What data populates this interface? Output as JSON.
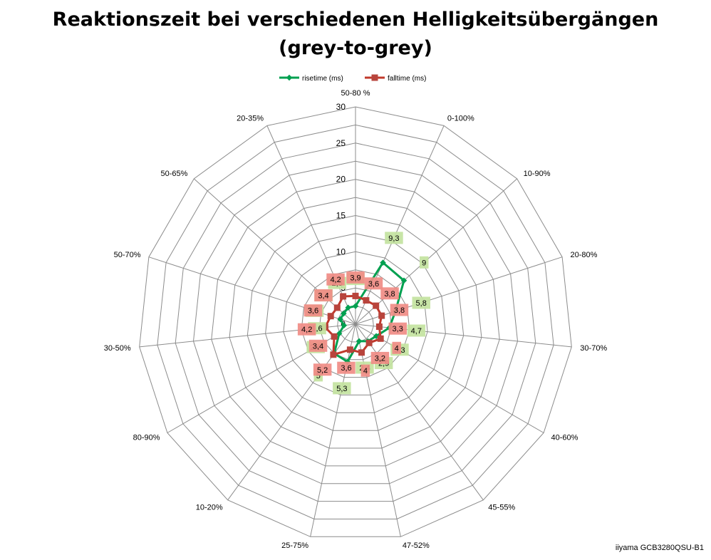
{
  "footer": {
    "credit": "iiyama GCB3280QSU-B1"
  },
  "chart_data": {
    "type": "radar",
    "title": "Reaktionszeit bei verschiedenen Helligkeitsübergängen\n(grey-to-grey)",
    "categories": [
      "50-80 %",
      "0-100%",
      "10-90%",
      "20-80%",
      "30-70%",
      "40-60%",
      "45-55%",
      "47-52%",
      "25-75%",
      "10-20%",
      "80-90%",
      "30-50%",
      "50-70%",
      "50-65%",
      "20-35%"
    ],
    "rlim": [
      0,
      30
    ],
    "ticks": [
      0,
      5,
      10,
      15,
      20,
      25,
      30
    ],
    "tick_labels": [
      "0",
      "5",
      "10",
      "15",
      "20",
      "25",
      "30"
    ],
    "grid": true,
    "legend_position": "top",
    "series": [
      {
        "name": "risetime (ms)",
        "color": "#00a050",
        "values": [
          2.5,
          9.3,
          9.0,
          5.8,
          4.7,
          3.3,
          2.9,
          2.4,
          5.3,
          5.0,
          2.6,
          1.6,
          2.2,
          2.2,
          2.5
        ],
        "labels": [
          "2,5",
          "9,3",
          "9",
          "5,8",
          "4,7",
          "3,3",
          "2,9",
          "2,4",
          "5,3",
          "5",
          "2,6",
          "1,6",
          "2,2",
          "2,2",
          "2,5"
        ]
      },
      {
        "name": "falltime (ms)",
        "color": "#c0392b",
        "values": [
          3.9,
          3.6,
          3.8,
          3.8,
          3.3,
          4.0,
          3.2,
          4.0,
          3.6,
          5.2,
          3.4,
          4.2,
          3.6,
          3.4,
          4.2
        ],
        "labels": [
          "3,9",
          "3,6",
          "3,8",
          "3,8",
          "3,3",
          "4",
          "3,2",
          "4",
          "3,6",
          "5,2",
          "3,4",
          "4,2",
          "3,6",
          "3,4",
          "4,2"
        ]
      }
    ]
  }
}
